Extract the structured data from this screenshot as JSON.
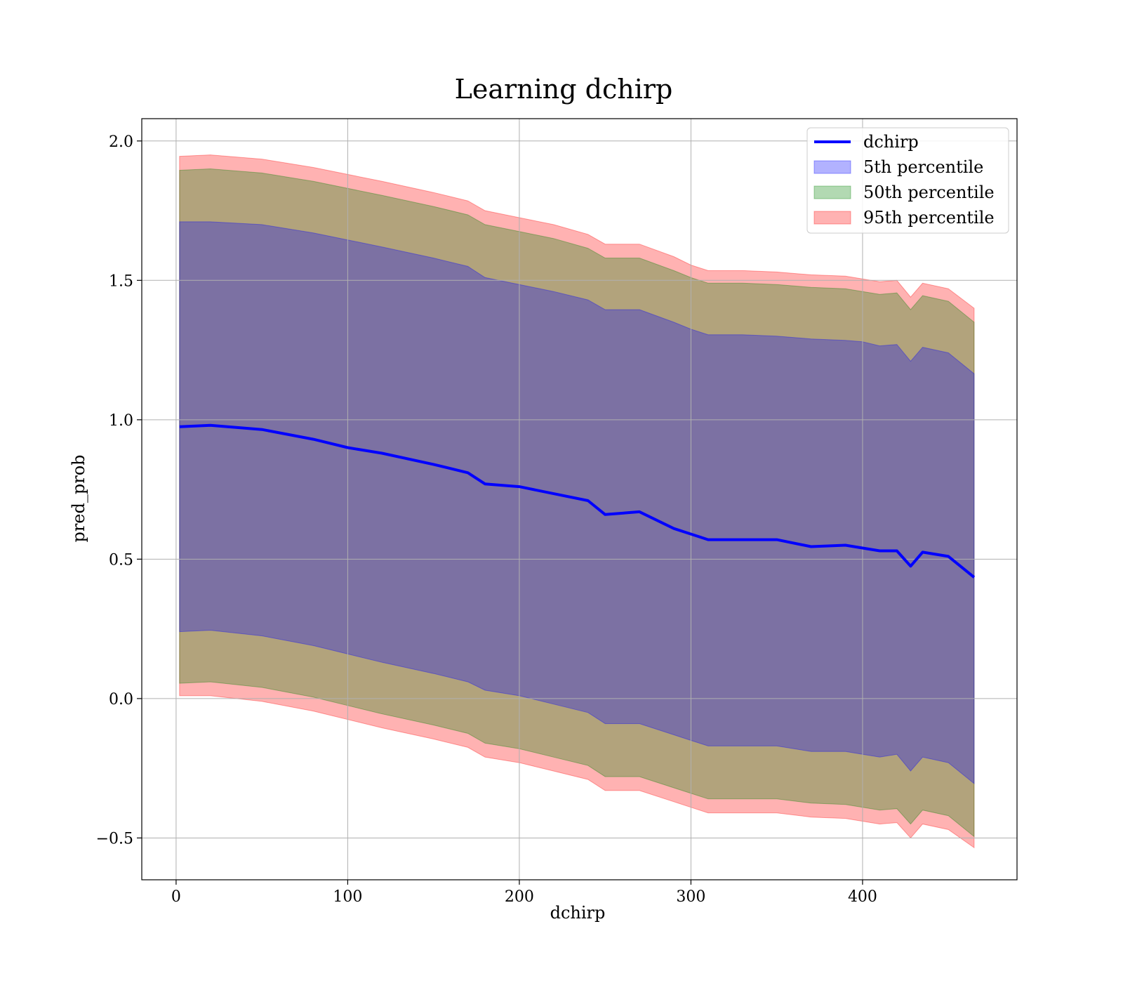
{
  "chart_data": {
    "type": "area",
    "title": "Learning dchirp",
    "xlabel": "dchirp",
    "ylabel": "pred_prob",
    "xlim": [
      -20,
      490
    ],
    "ylim": [
      -0.65,
      2.08
    ],
    "xticks": [
      0,
      100,
      200,
      300,
      400
    ],
    "yticks": [
      -0.5,
      0.0,
      0.5,
      1.0,
      1.5,
      2.0
    ],
    "xtick_labels": [
      "0",
      "100",
      "200",
      "300",
      "400"
    ],
    "ytick_labels": [
      "−0.5",
      "0.0",
      "0.5",
      "1.0",
      "1.5",
      "2.0"
    ],
    "grid": true,
    "legend_position": "top-right",
    "legend": [
      {
        "label": "dchirp",
        "kind": "line",
        "color": "#0000ff"
      },
      {
        "label": "5th percentile",
        "kind": "band",
        "color": "#0000ff"
      },
      {
        "label": "50th percentile",
        "kind": "band",
        "color": "#008000"
      },
      {
        "label": "95th percentile",
        "kind": "band",
        "color": "#ff0000"
      }
    ],
    "x": [
      2,
      20,
      50,
      80,
      100,
      120,
      150,
      170,
      180,
      200,
      220,
      240,
      250,
      270,
      290,
      300,
      310,
      330,
      350,
      370,
      390,
      400,
      410,
      420,
      428,
      435,
      450,
      465
    ],
    "series": [
      {
        "name": "dchirp",
        "type": "line",
        "color": "#0000ff",
        "values": [
          0.975,
          0.98,
          0.965,
          0.93,
          0.9,
          0.88,
          0.84,
          0.81,
          0.77,
          0.76,
          0.735,
          0.71,
          0.66,
          0.67,
          0.61,
          0.59,
          0.57,
          0.57,
          0.57,
          0.545,
          0.55,
          0.54,
          0.53,
          0.53,
          0.475,
          0.525,
          0.51,
          0.435
        ]
      },
      {
        "name": "5th percentile",
        "type": "band",
        "color": "#0000ff",
        "upper": [
          1.71,
          1.71,
          1.7,
          1.67,
          1.645,
          1.62,
          1.58,
          1.55,
          1.51,
          1.485,
          1.46,
          1.43,
          1.395,
          1.395,
          1.35,
          1.325,
          1.305,
          1.305,
          1.3,
          1.29,
          1.285,
          1.28,
          1.265,
          1.27,
          1.21,
          1.26,
          1.24,
          1.165
        ],
        "lower": [
          0.24,
          0.245,
          0.225,
          0.19,
          0.16,
          0.13,
          0.09,
          0.06,
          0.03,
          0.01,
          -0.02,
          -0.05,
          -0.09,
          -0.09,
          -0.13,
          -0.15,
          -0.17,
          -0.17,
          -0.17,
          -0.19,
          -0.19,
          -0.2,
          -0.21,
          -0.2,
          -0.26,
          -0.21,
          -0.23,
          -0.305
        ]
      },
      {
        "name": "50th percentile",
        "type": "band",
        "color": "#008000",
        "upper": [
          1.895,
          1.9,
          1.885,
          1.855,
          1.83,
          1.805,
          1.765,
          1.735,
          1.7,
          1.675,
          1.65,
          1.615,
          1.58,
          1.58,
          1.535,
          1.51,
          1.49,
          1.49,
          1.485,
          1.475,
          1.47,
          1.46,
          1.45,
          1.455,
          1.395,
          1.445,
          1.425,
          1.35
        ],
        "lower": [
          0.055,
          0.06,
          0.04,
          0.005,
          -0.025,
          -0.055,
          -0.095,
          -0.125,
          -0.16,
          -0.18,
          -0.21,
          -0.24,
          -0.28,
          -0.28,
          -0.32,
          -0.34,
          -0.36,
          -0.36,
          -0.36,
          -0.375,
          -0.38,
          -0.39,
          -0.4,
          -0.395,
          -0.45,
          -0.4,
          -0.42,
          -0.495
        ]
      },
      {
        "name": "95th percentile",
        "type": "band",
        "color": "#ff0000",
        "upper": [
          1.945,
          1.95,
          1.935,
          1.905,
          1.88,
          1.855,
          1.815,
          1.785,
          1.75,
          1.725,
          1.7,
          1.665,
          1.63,
          1.63,
          1.585,
          1.555,
          1.535,
          1.535,
          1.53,
          1.52,
          1.515,
          1.505,
          1.495,
          1.5,
          1.44,
          1.49,
          1.47,
          1.4
        ],
        "lower": [
          0.01,
          0.01,
          -0.01,
          -0.045,
          -0.075,
          -0.105,
          -0.145,
          -0.175,
          -0.21,
          -0.23,
          -0.26,
          -0.29,
          -0.33,
          -0.33,
          -0.37,
          -0.39,
          -0.41,
          -0.41,
          -0.41,
          -0.425,
          -0.43,
          -0.44,
          -0.45,
          -0.445,
          -0.5,
          -0.45,
          -0.47,
          -0.535
        ]
      }
    ]
  }
}
